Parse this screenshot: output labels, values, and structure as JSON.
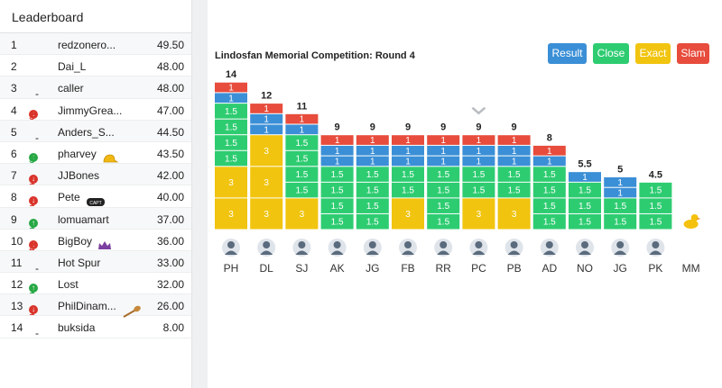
{
  "leaderboard": {
    "title": "Leaderboard",
    "rows": [
      {
        "rank": "1",
        "move": "",
        "dir": "",
        "name": "redzonero...",
        "score": "49.50",
        "badge": ""
      },
      {
        "rank": "2",
        "move": "",
        "dir": "",
        "name": "Dai_L",
        "score": "48.00",
        "badge": ""
      },
      {
        "rank": "3",
        "move": "-",
        "dir": "",
        "name": "caller",
        "score": "48.00",
        "badge": ""
      },
      {
        "rank": "4",
        "move": "3",
        "dir": "down",
        "name": "JimmyGrea...",
        "score": "47.00",
        "badge": ""
      },
      {
        "rank": "5",
        "move": "-",
        "dir": "",
        "name": "Anders_S...",
        "score": "44.50",
        "badge": ""
      },
      {
        "rank": "6",
        "move": "3",
        "dir": "up",
        "name": "pharvey",
        "score": "43.50",
        "badge": "cap-icon"
      },
      {
        "rank": "7",
        "move": "1",
        "dir": "down",
        "name": "JJBones",
        "score": "42.00",
        "badge": ""
      },
      {
        "rank": "8",
        "move": "1",
        "dir": "down",
        "name": "Pete",
        "score": "40.00",
        "badge": "captain-armband-icon"
      },
      {
        "rank": "9",
        "move": "1",
        "dir": "up",
        "name": "lomuamart",
        "score": "37.00",
        "badge": ""
      },
      {
        "rank": "10",
        "move": "2",
        "dir": "down",
        "name": "BigBoy",
        "score": "36.00",
        "badge": "crown-icon"
      },
      {
        "rank": "11",
        "move": "-",
        "dir": "",
        "name": "Hot Spur",
        "score": "33.00",
        "badge": ""
      },
      {
        "rank": "12",
        "move": "1",
        "dir": "up",
        "name": "Lost",
        "score": "32.00",
        "badge": ""
      },
      {
        "rank": "13",
        "move": "1",
        "dir": "down",
        "name": "PhilDinam...",
        "score": "26.00",
        "badge": "wooden-spoon-icon"
      },
      {
        "rank": "14",
        "move": "-",
        "dir": "",
        "name": "buksida",
        "score": "8.00",
        "badge": ""
      }
    ]
  },
  "panel": {
    "title": "Lindosfan Memorial Competition: Round 4",
    "buttons": {
      "result": "Result",
      "close": "Close",
      "exact": "Exact",
      "slam": "Slam"
    }
  },
  "colors": {
    "result": "#3b8fd6",
    "close": "#2ecc71",
    "exact": "#f1c40f",
    "slam": "#e74c3c"
  },
  "chart_data": {
    "type": "bar",
    "stacked": true,
    "categories": [
      "PH",
      "DL",
      "SJ",
      "AK",
      "JG",
      "FB",
      "RR",
      "PC",
      "PB",
      "AD",
      "NO",
      "JG",
      "PK",
      "MM"
    ],
    "totals": [
      "14",
      "12",
      "11",
      "9",
      "9",
      "9",
      "9",
      "9",
      "9",
      "8",
      "5.5",
      "5",
      "4.5",
      ""
    ],
    "segments": [
      [
        {
          "t": "exact",
          "v": 3
        },
        {
          "t": "exact",
          "v": 3
        },
        {
          "t": "close",
          "v": 1.5
        },
        {
          "t": "close",
          "v": 1.5
        },
        {
          "t": "close",
          "v": 1.5
        },
        {
          "t": "close",
          "v": 1.5
        },
        {
          "t": "result",
          "v": 1
        },
        {
          "t": "slam",
          "v": 1
        }
      ],
      [
        {
          "t": "exact",
          "v": 3
        },
        {
          "t": "exact",
          "v": 3
        },
        {
          "t": "exact",
          "v": 3
        },
        {
          "t": "result",
          "v": 1
        },
        {
          "t": "result",
          "v": 1
        },
        {
          "t": "slam",
          "v": 1
        }
      ],
      [
        {
          "t": "exact",
          "v": 3
        },
        {
          "t": "close",
          "v": 1.5
        },
        {
          "t": "close",
          "v": 1.5
        },
        {
          "t": "close",
          "v": 1.5
        },
        {
          "t": "close",
          "v": 1.5
        },
        {
          "t": "result",
          "v": 1
        },
        {
          "t": "slam",
          "v": 1
        }
      ],
      [
        {
          "t": "close",
          "v": 1.5
        },
        {
          "t": "close",
          "v": 1.5
        },
        {
          "t": "close",
          "v": 1.5
        },
        {
          "t": "close",
          "v": 1.5
        },
        {
          "t": "result",
          "v": 1
        },
        {
          "t": "result",
          "v": 1
        },
        {
          "t": "slam",
          "v": 1
        }
      ],
      [
        {
          "t": "close",
          "v": 1.5
        },
        {
          "t": "close",
          "v": 1.5
        },
        {
          "t": "close",
          "v": 1.5
        },
        {
          "t": "close",
          "v": 1.5
        },
        {
          "t": "result",
          "v": 1
        },
        {
          "t": "result",
          "v": 1
        },
        {
          "t": "slam",
          "v": 1
        }
      ],
      [
        {
          "t": "exact",
          "v": 3
        },
        {
          "t": "close",
          "v": 1.5
        },
        {
          "t": "close",
          "v": 1.5
        },
        {
          "t": "result",
          "v": 1
        },
        {
          "t": "result",
          "v": 1
        },
        {
          "t": "slam",
          "v": 1
        }
      ],
      [
        {
          "t": "close",
          "v": 1.5
        },
        {
          "t": "close",
          "v": 1.5
        },
        {
          "t": "close",
          "v": 1.5
        },
        {
          "t": "close",
          "v": 1.5
        },
        {
          "t": "result",
          "v": 1
        },
        {
          "t": "result",
          "v": 1
        },
        {
          "t": "slam",
          "v": 1
        }
      ],
      [
        {
          "t": "exact",
          "v": 3
        },
        {
          "t": "close",
          "v": 1.5
        },
        {
          "t": "close",
          "v": 1.5
        },
        {
          "t": "result",
          "v": 1
        },
        {
          "t": "result",
          "v": 1
        },
        {
          "t": "slam",
          "v": 1
        }
      ],
      [
        {
          "t": "exact",
          "v": 3
        },
        {
          "t": "close",
          "v": 1.5
        },
        {
          "t": "close",
          "v": 1.5
        },
        {
          "t": "result",
          "v": 1
        },
        {
          "t": "result",
          "v": 1
        },
        {
          "t": "slam",
          "v": 1
        }
      ],
      [
        {
          "t": "close",
          "v": 1.5
        },
        {
          "t": "close",
          "v": 1.5
        },
        {
          "t": "close",
          "v": 1.5
        },
        {
          "t": "close",
          "v": 1.5
        },
        {
          "t": "result",
          "v": 1
        },
        {
          "t": "slam",
          "v": 1
        }
      ],
      [
        {
          "t": "close",
          "v": 1.5
        },
        {
          "t": "close",
          "v": 1.5
        },
        {
          "t": "close",
          "v": 1.5
        },
        {
          "t": "result",
          "v": 1
        }
      ],
      [
        {
          "t": "close",
          "v": 1.5
        },
        {
          "t": "close",
          "v": 1.5
        },
        {
          "t": "result",
          "v": 1
        },
        {
          "t": "result",
          "v": 1
        }
      ],
      [
        {
          "t": "close",
          "v": 1.5
        },
        {
          "t": "close",
          "v": 1.5
        },
        {
          "t": "close",
          "v": 1.5
        }
      ],
      []
    ],
    "last_badge": "rubber-duck-icon"
  }
}
